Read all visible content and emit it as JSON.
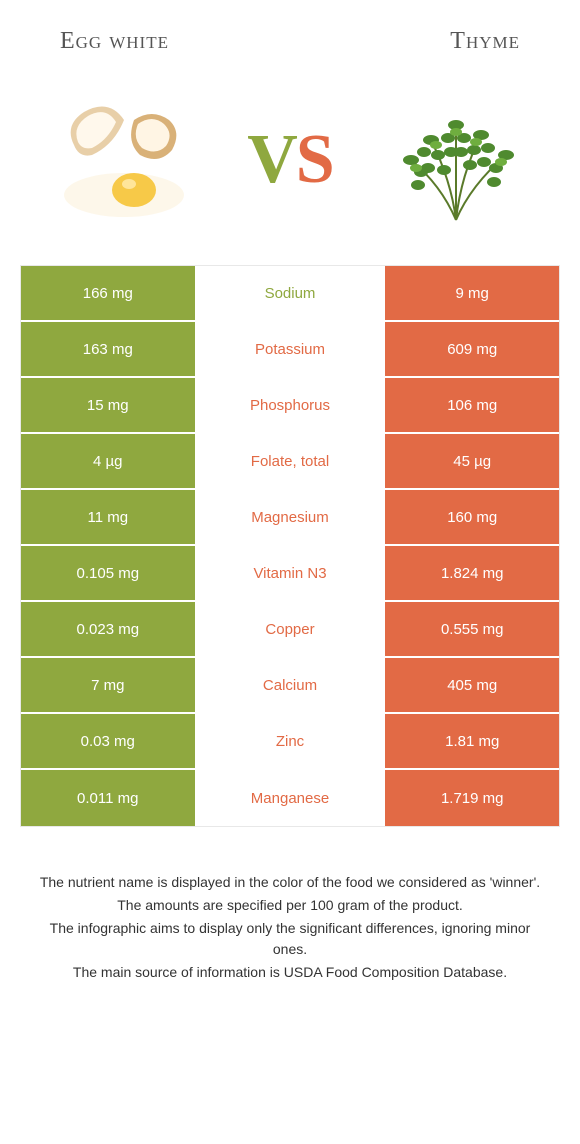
{
  "header": {
    "left": "Egg white",
    "right": "Thyme"
  },
  "vs": {
    "v": "V",
    "s": "S"
  },
  "colors": {
    "left": "#8fa83f",
    "right": "#e26a45",
    "row_border": "#ffffff",
    "background": "#ffffff",
    "title_text": "#555555",
    "foot_text": "#333333"
  },
  "table": {
    "rows": [
      {
        "left": "166 mg",
        "label": "Sodium",
        "right": "9 mg",
        "winner": "left"
      },
      {
        "left": "163 mg",
        "label": "Potassium",
        "right": "609 mg",
        "winner": "right"
      },
      {
        "left": "15 mg",
        "label": "Phosphorus",
        "right": "106 mg",
        "winner": "right"
      },
      {
        "left": "4 µg",
        "label": "Folate, total",
        "right": "45 µg",
        "winner": "right"
      },
      {
        "left": "11 mg",
        "label": "Magnesium",
        "right": "160 mg",
        "winner": "right"
      },
      {
        "left": "0.105 mg",
        "label": "Vitamin N3",
        "right": "1.824 mg",
        "winner": "right"
      },
      {
        "left": "0.023 mg",
        "label": "Copper",
        "right": "0.555 mg",
        "winner": "right"
      },
      {
        "left": "7 mg",
        "label": "Calcium",
        "right": "405 mg",
        "winner": "right"
      },
      {
        "left": "0.03 mg",
        "label": "Zinc",
        "right": "1.81 mg",
        "winner": "right"
      },
      {
        "left": "0.011 mg",
        "label": "Manganese",
        "right": "1.719 mg",
        "winner": "right"
      }
    ]
  },
  "footnotes": [
    "The nutrient name is displayed in the color of the food we considered as 'winner'.",
    "The amounts are specified per 100 gram of the product.",
    "The infographic aims to display only the significant differences, ignoring minor ones.",
    "The main source of information is USDA Food Composition Database."
  ]
}
